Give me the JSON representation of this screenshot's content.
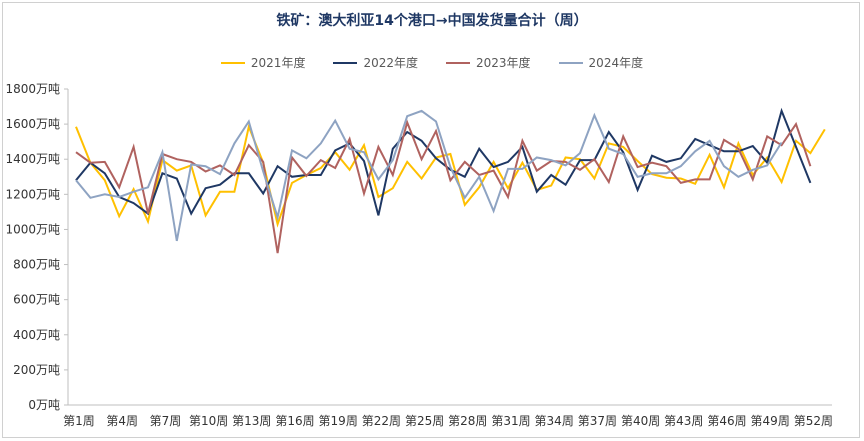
{
  "chart_data": {
    "type": "line",
    "title": "铁矿：澳大利亚14个港口→中国发货量合计（周）",
    "xlabel": "",
    "ylabel": "",
    "ylim": [
      0,
      1800
    ],
    "yticks": [
      "0万吨",
      "200万吨",
      "400万吨",
      "600万吨",
      "800万吨",
      "1000万吨",
      "1200万吨",
      "1400万吨",
      "1600万吨",
      "1800万吨"
    ],
    "ytick_values": [
      0,
      200,
      400,
      600,
      800,
      1000,
      1200,
      1400,
      1600,
      1800
    ],
    "xtick_labels": [
      "第1周",
      "第4周",
      "第7周",
      "第10周",
      "第13周",
      "第16周",
      "第19周",
      "第22周",
      "第25周",
      "第28周",
      "第31周",
      "第34周",
      "第37周",
      "第40周",
      "第43周",
      "第46周",
      "第49周",
      "第52周"
    ],
    "xtick_weeks": [
      1,
      4,
      7,
      10,
      13,
      16,
      19,
      22,
      25,
      28,
      31,
      34,
      37,
      40,
      43,
      46,
      49,
      52
    ],
    "legend_position": "top",
    "grid": false,
    "series": [
      {
        "name": "2021年度",
        "color": "#FFC000",
        "values": [
          1585,
          1380,
          1280,
          1075,
          1230,
          1045,
          1395,
          1335,
          1365,
          1080,
          1215,
          1215,
          1585,
          1380,
          1030,
          1265,
          1310,
          1350,
          1440,
          1340,
          1480,
          1185,
          1235,
          1385,
          1290,
          1410,
          1430,
          1140,
          1240,
          1385,
          1235,
          1380,
          1225,
          1250,
          1410,
          1400,
          1290,
          1490,
          1470,
          1390,
          1315,
          1295,
          1290,
          1260,
          1425,
          1240,
          1490,
          1310,
          1410,
          1270,
          1505,
          1435,
          1570
        ]
      },
      {
        "name": "2022年度",
        "color": "#1F3864",
        "values": [
          1280,
          1380,
          1320,
          1185,
          1150,
          1090,
          1320,
          1290,
          1090,
          1235,
          1255,
          1320,
          1320,
          1205,
          1360,
          1300,
          1310,
          1310,
          1450,
          1490,
          1390,
          1080,
          1460,
          1555,
          1505,
          1405,
          1340,
          1300,
          1460,
          1355,
          1385,
          1470,
          1215,
          1310,
          1255,
          1395,
          1395,
          1555,
          1440,
          1225,
          1420,
          1385,
          1405,
          1515,
          1480,
          1445,
          1445,
          1475,
          1380,
          1675,
          1470,
          1265
        ]
      },
      {
        "name": "2023年度",
        "color": "#B0625F",
        "values": [
          1440,
          1380,
          1385,
          1240,
          1470,
          1090,
          1430,
          1400,
          1385,
          1330,
          1365,
          1310,
          1480,
          1385,
          865,
          1410,
          1305,
          1395,
          1350,
          1515,
          1205,
          1470,
          1310,
          1610,
          1400,
          1560,
          1280,
          1385,
          1310,
          1335,
          1185,
          1505,
          1335,
          1390,
          1385,
          1340,
          1400,
          1270,
          1530,
          1355,
          1380,
          1360,
          1265,
          1285,
          1285,
          1510,
          1460,
          1285,
          1530,
          1480,
          1600,
          1360
        ]
      },
      {
        "name": "2024年度",
        "color": "#8EA3C2",
        "values": [
          1280,
          1180,
          1200,
          1185,
          1215,
          1240,
          1440,
          935,
          1370,
          1360,
          1315,
          1490,
          1615,
          1330,
          1070,
          1450,
          1405,
          1490,
          1620,
          1460,
          1440,
          1285,
          1395,
          1645,
          1675,
          1615,
          1355,
          1180,
          1300,
          1105,
          1345,
          1345,
          1410,
          1395,
          1365,
          1435,
          1650,
          1460,
          1430,
          1300,
          1320,
          1320,
          1360,
          1445,
          1505,
          1360,
          1300,
          1340,
          1365,
          1495
        ]
      }
    ]
  }
}
